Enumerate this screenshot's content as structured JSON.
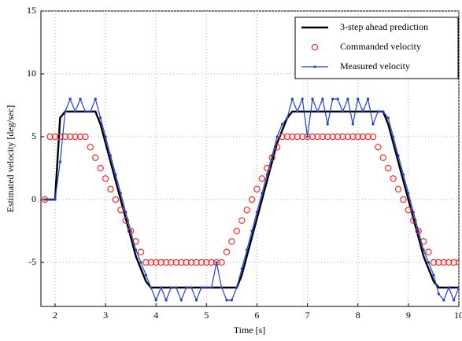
{
  "chart_data": {
    "type": "line",
    "xlabel": "Time [s]",
    "ylabel": "Estimated velocity [deg/sec]",
    "xlim": [
      1.72,
      10
    ],
    "ylim": [
      -8.5,
      15
    ],
    "xticks": [
      2,
      3,
      4,
      5,
      6,
      7,
      8,
      9,
      10
    ],
    "yticks": [
      -5,
      0,
      5,
      10,
      15
    ],
    "grid": true,
    "legend": "upper right",
    "x": [
      1.8,
      1.9,
      2.0,
      2.1,
      2.2,
      2.3,
      2.4,
      2.5,
      2.6,
      2.7,
      2.8,
      2.9,
      3.0,
      3.1,
      3.2,
      3.3,
      3.4,
      3.5,
      3.6,
      3.7,
      3.8,
      3.9,
      4.0,
      4.1,
      4.2,
      4.3,
      4.4,
      4.5,
      4.6,
      4.7,
      4.8,
      4.9,
      5.0,
      5.1,
      5.2,
      5.3,
      5.4,
      5.5,
      5.6,
      5.7,
      5.8,
      5.9,
      6.0,
      6.1,
      6.2,
      6.3,
      6.4,
      6.5,
      6.6,
      6.7,
      6.8,
      6.9,
      7.0,
      7.1,
      7.2,
      7.3,
      7.4,
      7.5,
      7.6,
      7.7,
      7.8,
      7.9,
      8.0,
      8.1,
      8.2,
      8.3,
      8.4,
      8.5,
      8.6,
      8.7,
      8.8,
      8.9,
      9.0,
      9.1,
      9.2,
      9.3,
      9.4,
      9.5,
      9.6,
      9.7,
      9.8,
      9.9,
      10.0
    ],
    "series": [
      {
        "name": "3-step ahead prediction",
        "color": "#000000",
        "line": true,
        "values": [
          0,
          0,
          0,
          6.5,
          7,
          7,
          7,
          7,
          7,
          7,
          7,
          6,
          4.5,
          3,
          1.5,
          0,
          -1.5,
          -3,
          -4.5,
          -5.5,
          -6.5,
          -7,
          -7,
          -7,
          -7,
          -7,
          -7,
          -7,
          -7,
          -7,
          -7,
          -7,
          -7,
          -7,
          -7,
          -7,
          -7,
          -7,
          -7,
          -6,
          -4.5,
          -3,
          -1.5,
          0,
          1.5,
          3,
          4.5,
          5.5,
          6.5,
          7,
          7,
          7,
          7,
          7,
          7,
          7,
          7,
          7,
          7,
          7,
          7,
          7,
          7,
          7,
          7,
          7,
          7,
          7,
          6,
          4.5,
          3,
          1.5,
          0,
          -1.5,
          -3,
          -4.5,
          -5.5,
          -6.5,
          -7,
          -7,
          -7,
          -7,
          -7
        ]
      },
      {
        "name": "Commanded velocity",
        "color": "#ff2a2a",
        "line": false,
        "marker": "circle",
        "values": [
          0,
          5,
          5,
          5,
          5,
          5,
          5,
          5,
          5,
          4.17,
          3.33,
          2.5,
          1.67,
          0.83,
          0,
          -0.83,
          -1.67,
          -2.5,
          -3.33,
          -4.17,
          -5,
          -5,
          -5,
          -5,
          -5,
          -5,
          -5,
          -5,
          -5,
          -5,
          -5,
          -5,
          -5,
          -5,
          -5,
          -5,
          -4.17,
          -3.33,
          -2.5,
          -1.67,
          -0.83,
          0,
          0.83,
          1.67,
          2.5,
          3.33,
          4.17,
          5,
          5,
          5,
          5,
          5,
          5,
          5,
          5,
          5,
          5,
          5,
          5,
          5,
          5,
          5,
          5,
          5,
          5,
          5,
          4.17,
          3.33,
          2.5,
          1.67,
          0.83,
          0,
          -0.83,
          -1.67,
          -2.5,
          -3.33,
          -4.17,
          -5,
          -5,
          -5,
          -5,
          -5,
          -5
        ]
      },
      {
        "name": "Measured velocity",
        "color": "#1f3fd6",
        "line": true,
        "marker": "dot",
        "values": [
          0,
          0,
          0,
          3,
          7,
          8,
          7,
          8,
          7,
          7,
          8,
          6.5,
          5,
          3.5,
          2,
          0.5,
          -1,
          -2.5,
          -4,
          -5,
          -6,
          -7,
          -8,
          -7,
          -8,
          -7,
          -7,
          -8,
          -7,
          -7,
          -8,
          -7,
          -7,
          -7,
          -5,
          -7,
          -8,
          -8,
          -7,
          -5.5,
          -4,
          -2.5,
          -1,
          0.5,
          2,
          3.5,
          5,
          6,
          6.5,
          8,
          7,
          8,
          5,
          8,
          7,
          8,
          6,
          8,
          8,
          7,
          8,
          6,
          8,
          7,
          8,
          6,
          7,
          7,
          6.5,
          5,
          3.5,
          2,
          0.5,
          -1,
          -2.5,
          -4,
          -5,
          -6,
          -7.5,
          -8,
          -7,
          -8,
          -7
        ]
      }
    ]
  }
}
